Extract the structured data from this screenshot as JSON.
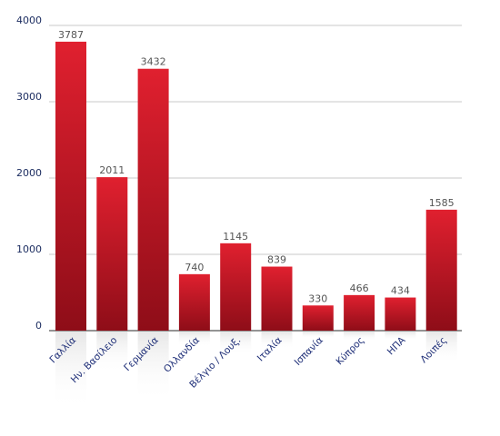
{
  "chart_data": {
    "type": "bar",
    "categories": [
      "Γαλλία",
      "Ην. Βασίλειο",
      "Γερμανία",
      "Ολλανδία",
      "Βέλγιο / Λουξ.",
      "Ιταλία",
      "Ισπανία",
      "Κύπρος",
      "ΗΠΑ",
      "Λοιπές"
    ],
    "values": [
      3787,
      2011,
      3432,
      740,
      1145,
      839,
      330,
      466,
      434,
      1585
    ],
    "ylim": [
      0,
      4000
    ],
    "yticks": [
      "0",
      "1000",
      "2000",
      "3000",
      "4000"
    ],
    "grid": true,
    "legend": "none",
    "title": "",
    "xlabel": "",
    "ylabel": ""
  },
  "colors": {
    "bar_top": "#e0202f",
    "bar_bottom": "#8e0d18",
    "grid": "#c8c8c8",
    "axis": "#555555"
  }
}
